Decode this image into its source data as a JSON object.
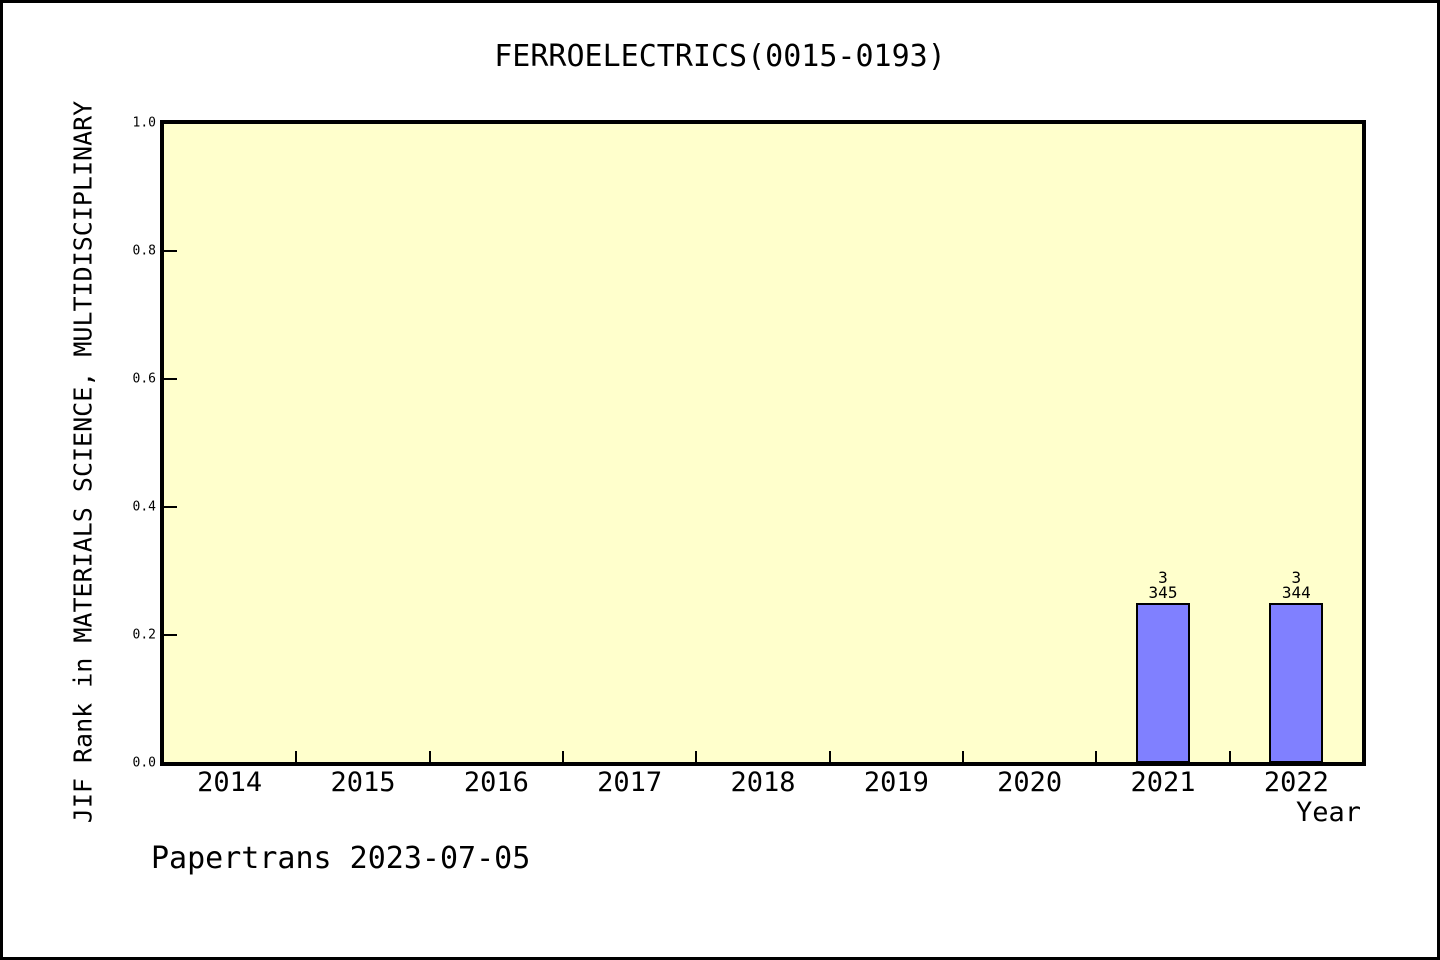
{
  "chart_data": {
    "type": "bar",
    "title": "FERROELECTRICS(0015-0193)",
    "xlabel": "Year",
    "ylabel": "JIF Rank in MATERIALS SCIENCE, MULTIDISCIPLINARY",
    "categories": [
      "2014",
      "2015",
      "2016",
      "2017",
      "2018",
      "2019",
      "2020",
      "2021",
      "2022"
    ],
    "values": [
      null,
      null,
      null,
      null,
      null,
      null,
      null,
      0.25,
      0.25
    ],
    "bar_annotations": [
      null,
      null,
      null,
      null,
      null,
      null,
      null,
      [
        "3",
        "345"
      ],
      [
        "3",
        "344"
      ]
    ],
    "ylim": [
      0.0,
      1.0
    ],
    "ytick_labels": [
      "0.0",
      "0.2",
      "0.4",
      "0.6",
      "0.8",
      "1.0"
    ],
    "ytick_values": [
      0.0,
      0.2,
      0.4,
      0.6,
      0.8,
      1.0
    ],
    "grid": false,
    "legend": null,
    "colors": {
      "bar_fill": "#8080FF",
      "bar_border": "#000000",
      "plot_background": "#FFFFCC",
      "frame": "#000000",
      "page_background": "#FFFFFF",
      "text": "#000000"
    }
  },
  "footer": {
    "text": "Papertrans 2023-07-05"
  }
}
